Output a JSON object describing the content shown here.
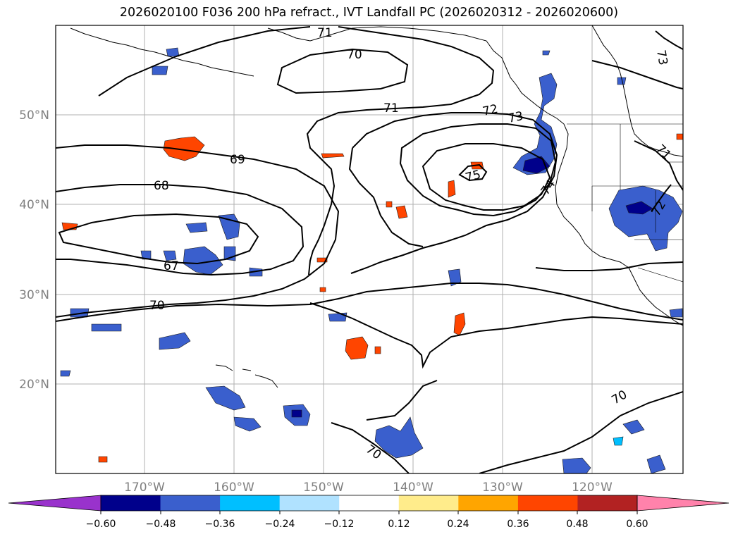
{
  "title": "2026020100 F036 200 hPa refract., IVT Landfall PC (2026020312 - 2026020600)",
  "map": {
    "lon_labels": [
      "170°W",
      "160°W",
      "150°W",
      "140°W",
      "130°W",
      "120°W"
    ],
    "lat_labels": [
      "20°N",
      "30°N",
      "40°N",
      "50°N"
    ],
    "contour_labels": [
      "71",
      "70",
      "71",
      "72",
      "73",
      "73",
      "71",
      "69",
      "68",
      "67",
      "70",
      "75",
      "74",
      "72",
      "70",
      "70"
    ]
  },
  "colorbar": {
    "tick_labels": [
      "−0.60",
      "−0.48",
      "−0.36",
      "−0.24",
      "−0.12",
      "0.12",
      "0.24",
      "0.36",
      "0.48",
      "0.60"
    ],
    "colors": [
      "#9932CC",
      "#00008B",
      "#3A5FCD",
      "#00BFFF",
      "#B0E2FF",
      "#FFFFFF",
      "#FFEC8B",
      "#FFA500",
      "#FF4500",
      "#B22222",
      "#FF82AB"
    ]
  }
}
